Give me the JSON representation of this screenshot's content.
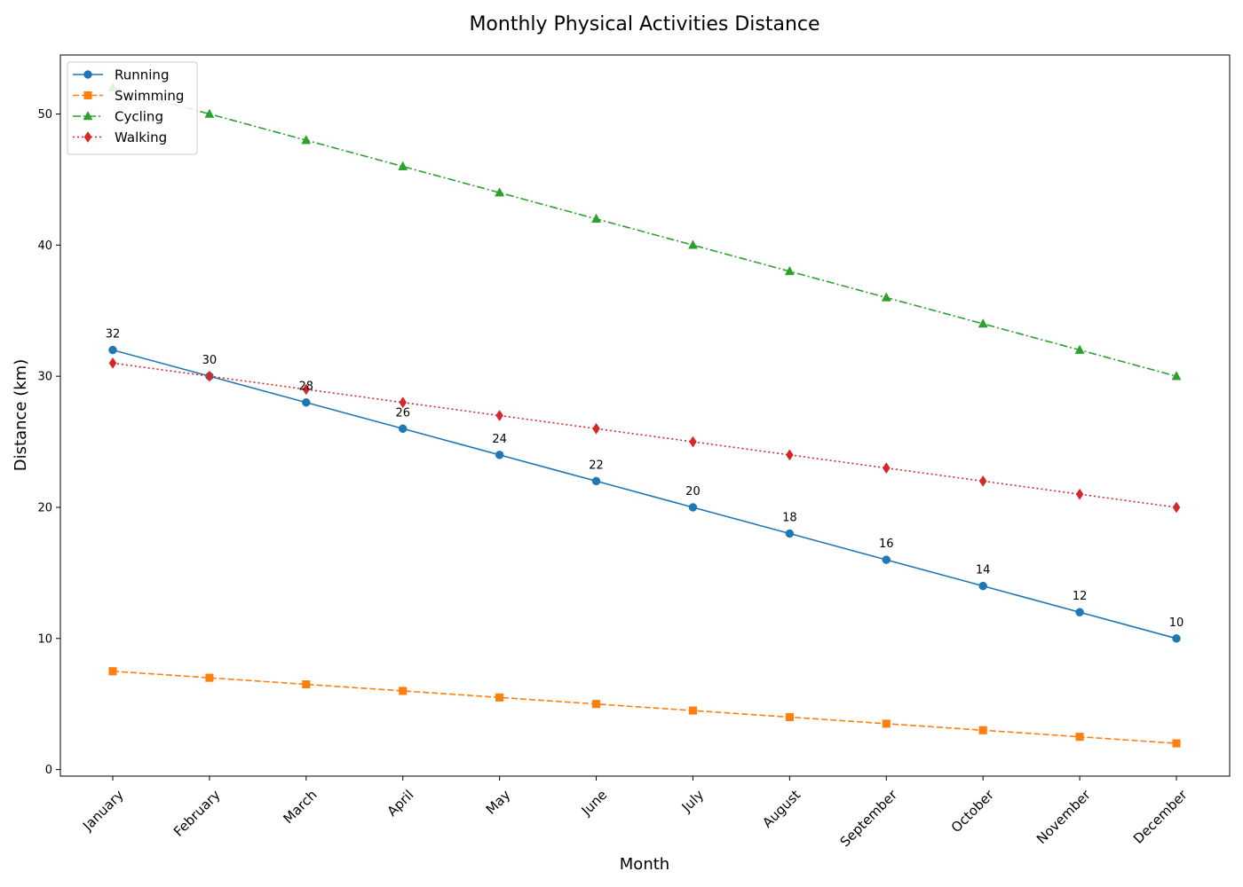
{
  "chart_data": {
    "type": "line",
    "title": "Monthly Physical Activities Distance",
    "xlabel": "Month",
    "ylabel": "Distance (km)",
    "categories": [
      "January",
      "February",
      "March",
      "April",
      "May",
      "June",
      "July",
      "August",
      "September",
      "October",
      "November",
      "December"
    ],
    "ylim": [
      -0.5,
      54.5
    ],
    "yticks": [
      0,
      10,
      20,
      30,
      40,
      50
    ],
    "grid": false,
    "legend_position": "top-left",
    "series": [
      {
        "name": "Running",
        "color": "#1f77b4",
        "marker": "circle",
        "line_style": "solid",
        "values": [
          32,
          30,
          28,
          26,
          24,
          22,
          20,
          18,
          16,
          14,
          12,
          10
        ],
        "show_data_labels": true
      },
      {
        "name": "Swimming",
        "color": "#ff7f0e",
        "marker": "square",
        "line_style": "dashed",
        "values": [
          7.5,
          7,
          6.5,
          6,
          5.5,
          5,
          4.5,
          4,
          3.5,
          3,
          2.5,
          2
        ],
        "show_data_labels": false
      },
      {
        "name": "Cycling",
        "color": "#2ca02c",
        "marker": "triangle",
        "line_style": "dashdot",
        "values": [
          52,
          50,
          48,
          46,
          44,
          42,
          40,
          38,
          36,
          34,
          32,
          30
        ],
        "show_data_labels": false
      },
      {
        "name": "Walking",
        "color": "#d62728",
        "marker": "diamond",
        "line_style": "dotted",
        "values": [
          31,
          30,
          29,
          28,
          27,
          26,
          25,
          24,
          23,
          22,
          21,
          20
        ],
        "show_data_labels": false
      }
    ]
  }
}
